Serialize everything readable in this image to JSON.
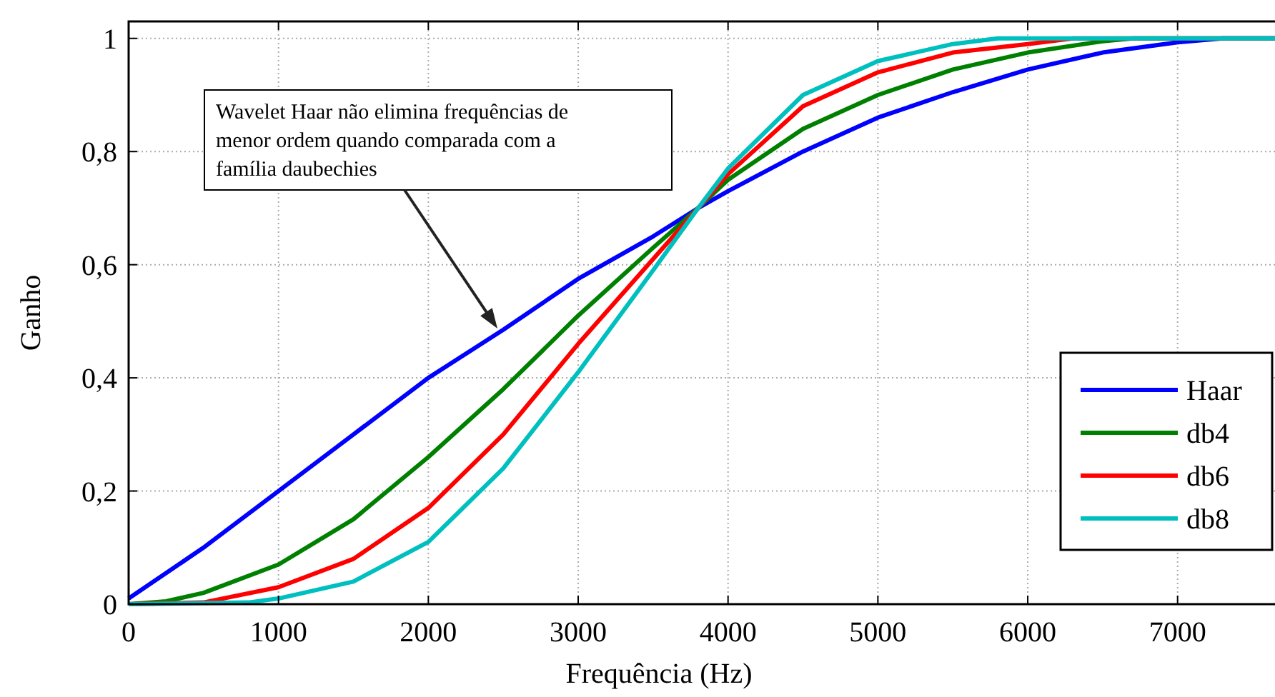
{
  "chart_data": {
    "type": "line",
    "xlabel": "Frequência (Hz)",
    "ylabel": "Ganho",
    "annotations": [
      "Wavelet Haar não elimina frequências de\nmenor ordem quando comparada com a\nfamília daubechies"
    ],
    "series": [
      {
        "name": "Haar",
        "color": "#0000ff",
        "x": [
          0,
          500,
          1000,
          1500,
          2000,
          2500,
          3000,
          3500,
          3800,
          4000,
          4500,
          5000,
          5500,
          6000,
          6500,
          7000,
          7300,
          7650
        ],
        "values": [
          0.01,
          0.1,
          0.2,
          0.3,
          0.4,
          0.485,
          0.575,
          0.65,
          0.7,
          0.73,
          0.8,
          0.86,
          0.905,
          0.945,
          0.975,
          0.993,
          1,
          1
        ]
      },
      {
        "name": "db4",
        "color": "#008000",
        "x": [
          0,
          250,
          500,
          1000,
          1500,
          2000,
          2500,
          3000,
          3500,
          3800,
          4000,
          4500,
          5000,
          5500,
          6000,
          6500,
          6700,
          7650
        ],
        "values": [
          0,
          0.005,
          0.02,
          0.07,
          0.15,
          0.26,
          0.38,
          0.51,
          0.63,
          0.7,
          0.75,
          0.84,
          0.9,
          0.945,
          0.975,
          0.995,
          1,
          1
        ]
      },
      {
        "name": "db6",
        "color": "#ff0000",
        "x": [
          0,
          500,
          1000,
          1500,
          2000,
          2500,
          3000,
          3500,
          3800,
          4000,
          4500,
          5000,
          5500,
          6000,
          6300,
          7650
        ],
        "values": [
          0,
          0.003,
          0.03,
          0.08,
          0.17,
          0.3,
          0.46,
          0.61,
          0.7,
          0.76,
          0.88,
          0.94,
          0.975,
          0.99,
          1,
          1
        ]
      },
      {
        "name": "db8",
        "color": "#00bfbf",
        "x": [
          0,
          800,
          1000,
          1500,
          2000,
          2500,
          3000,
          3500,
          3800,
          4000,
          4500,
          5000,
          5500,
          5800,
          7650
        ],
        "values": [
          0,
          0.003,
          0.01,
          0.04,
          0.11,
          0.24,
          0.41,
          0.59,
          0.7,
          0.77,
          0.9,
          0.96,
          0.99,
          1,
          1
        ]
      }
    ],
    "xlim": [
      0,
      7650
    ],
    "xticks": [
      0,
      1000,
      2000,
      3000,
      4000,
      5000,
      6000,
      7000
    ],
    "ylim": [
      0,
      1.03
    ],
    "yticks": [
      0,
      {
        "value": 0.2,
        "label": "0,2"
      },
      {
        "value": 0.4,
        "label": "0,4"
      },
      {
        "value": 0.6,
        "label": "0,6"
      },
      {
        "value": 0.8,
        "label": "0,8"
      },
      1
    ],
    "grid": true,
    "legend": "bottom right",
    "line_style": "solid"
  }
}
